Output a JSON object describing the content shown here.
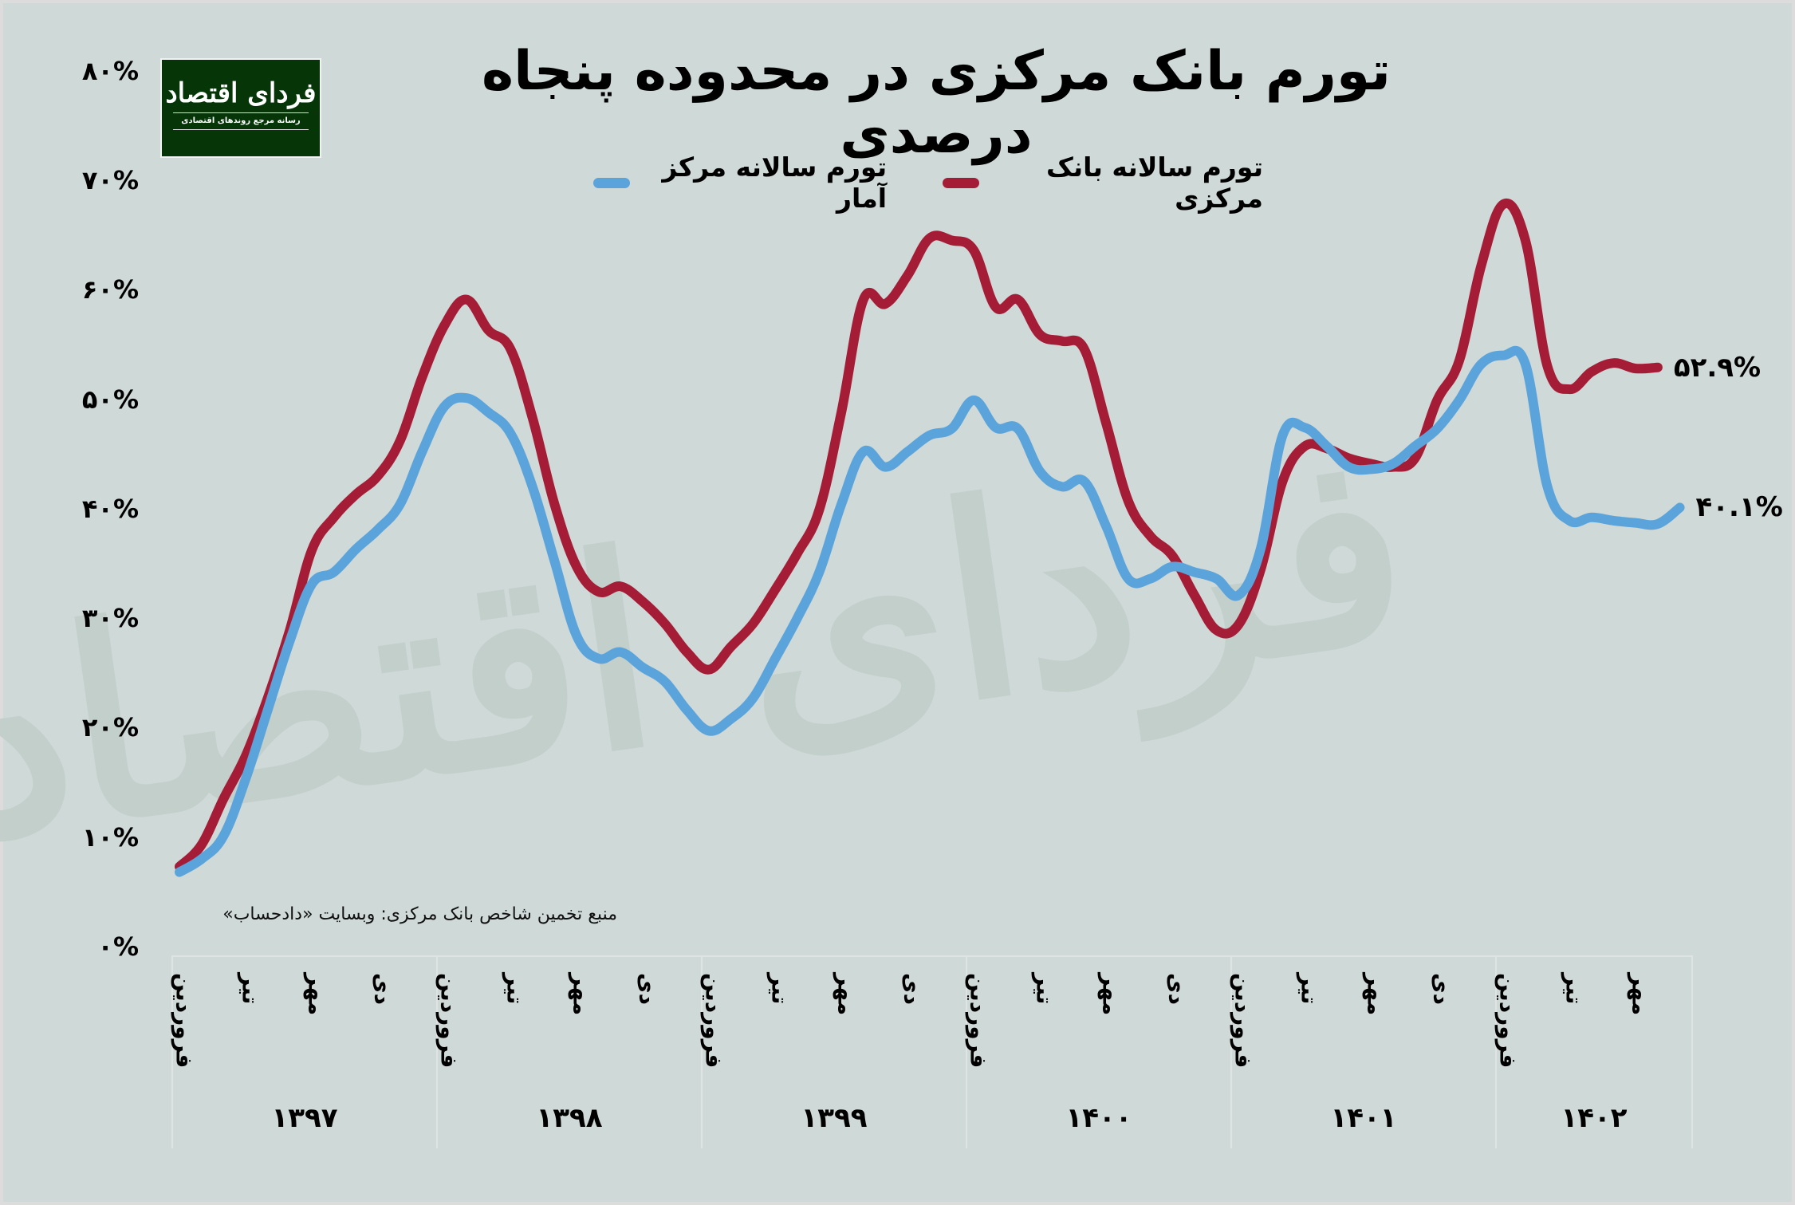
{
  "header": {
    "title": "تورم بانک مرکزی در محدوده پنجاه درصدی",
    "logo": {
      "brand": "فردای اقتصاد",
      "tagline": "رسانه مرجع روندهای اقتصادی",
      "bg_color": "#063508"
    }
  },
  "legend": [
    {
      "label": "تورم سالانه بانک مرکزی",
      "color": "#a51c36"
    },
    {
      "label": "تورم سالانه مرکز آمار",
      "color": "#5ba4db"
    }
  ],
  "source_note": "منبع تخمین شاخص بانک مرکزی: وبسایت «دادحساب»",
  "watermark": "فردای اقتصاد",
  "end_labels": {
    "central_bank": "۵۲.۹%",
    "statistics_center": "۴۰.۱%"
  },
  "y_axis": {
    "ticks": [
      "۰%",
      "۱۰%",
      "۲۰%",
      "۳۰%",
      "۴۰%",
      "۵۰%",
      "۶۰%",
      "۷۰%",
      "۸۰%"
    ]
  },
  "x_axis": {
    "years": [
      {
        "year": "۱۳۹۷",
        "months": [
          "فروردین",
          "تیر",
          "مهر",
          "دی"
        ]
      },
      {
        "year": "۱۳۹۸",
        "months": [
          "فروردین",
          "تیر",
          "مهر",
          "دی"
        ]
      },
      {
        "year": "۱۳۹۹",
        "months": [
          "فروردین",
          "تیر",
          "مهر",
          "دی"
        ]
      },
      {
        "year": "۱۴۰۰",
        "months": [
          "فروردین",
          "تیر",
          "مهر",
          "دی"
        ]
      },
      {
        "year": "۱۴۰۱",
        "months": [
          "فروردین",
          "تیر",
          "مهر",
          "دی"
        ]
      },
      {
        "year": "۱۴۰۲",
        "months": [
          "فروردین",
          "تیر",
          "مهر"
        ]
      }
    ]
  },
  "chart_data": {
    "type": "line",
    "title": "تورم بانک مرکزی در محدوده پنجاه درصدی",
    "xlabel": "",
    "ylabel": "",
    "ylim": [
      0,
      80
    ],
    "y_ticks": [
      0,
      10,
      20,
      30,
      40,
      50,
      60,
      70,
      80
    ],
    "y_tick_format": "percent",
    "grid": false,
    "legend_position": "top-center",
    "x_unit": "month (Solar Hijri), starting فروردین ۱۳۹۷",
    "x_tick_labels": [
      "فروردین ۱۳۹۷",
      "تیر",
      "مهر",
      "دی",
      "فروردین ۱۳۹۸",
      "تیر",
      "مهر",
      "دی",
      "فروردین ۱۳۹۹",
      "تیر",
      "مهر",
      "دی",
      "فروردین ۱۴۰۰",
      "تیر",
      "مهر",
      "دی",
      "فروردین ۱۴۰۱",
      "تیر",
      "مهر",
      "دی",
      "فروردین ۱۴۰۲",
      "تیر",
      "مهر"
    ],
    "series": [
      {
        "name": "تورم سالانه بانک مرکزی",
        "color": "#a51c36",
        "end_label": "۵۲.۹%",
        "values": [
          7.3,
          9.3,
          13.5,
          17.4,
          22.7,
          28.9,
          36.2,
          39.2,
          41.3,
          43.0,
          46.2,
          52.0,
          56.7,
          59.1,
          56.3,
          54.6,
          48.3,
          40.4,
          34.7,
          32.4,
          32.9,
          31.5,
          29.5,
          26.9,
          25.3,
          27.4,
          29.5,
          32.6,
          35.9,
          39.9,
          48.8,
          59.1,
          58.7,
          61.3,
          64.7,
          64.5,
          63.6,
          58.4,
          59.1,
          55.9,
          55.3,
          54.6,
          47.8,
          40.7,
          37.5,
          35.7,
          32.1,
          28.9,
          29.4,
          34.4,
          42.5,
          45.7,
          45.5,
          44.6,
          44.1,
          43.8,
          44.6,
          49.9,
          53.5,
          62.2,
          67.8,
          64.5,
          53.0,
          50.9,
          52.5,
          53.3,
          52.8,
          52.9
        ]
      },
      {
        "name": "تورم سالانه مرکز آمار",
        "color": "#5ba4db",
        "end_label": "۴۰.۱%",
        "values": [
          6.8,
          8.0,
          10.1,
          15.3,
          21.6,
          27.9,
          33.1,
          34.2,
          36.3,
          38.1,
          40.4,
          45.2,
          49.3,
          50.1,
          48.8,
          46.9,
          42.0,
          35.2,
          28.4,
          26.3,
          26.9,
          25.5,
          24.2,
          21.6,
          19.7,
          20.8,
          22.7,
          26.3,
          30.0,
          34.2,
          40.4,
          45.2,
          43.8,
          45.2,
          46.7,
          47.3,
          49.9,
          47.4,
          47.3,
          43.4,
          42.0,
          42.5,
          38.4,
          33.6,
          33.6,
          34.7,
          34.2,
          33.6,
          32.1,
          36.3,
          46.7,
          47.4,
          45.7,
          43.8,
          43.6,
          44.1,
          45.7,
          47.3,
          49.9,
          53.2,
          54.0,
          53.2,
          42.0,
          38.9,
          39.2,
          38.9,
          38.7,
          38.6,
          40.1
        ]
      }
    ]
  }
}
